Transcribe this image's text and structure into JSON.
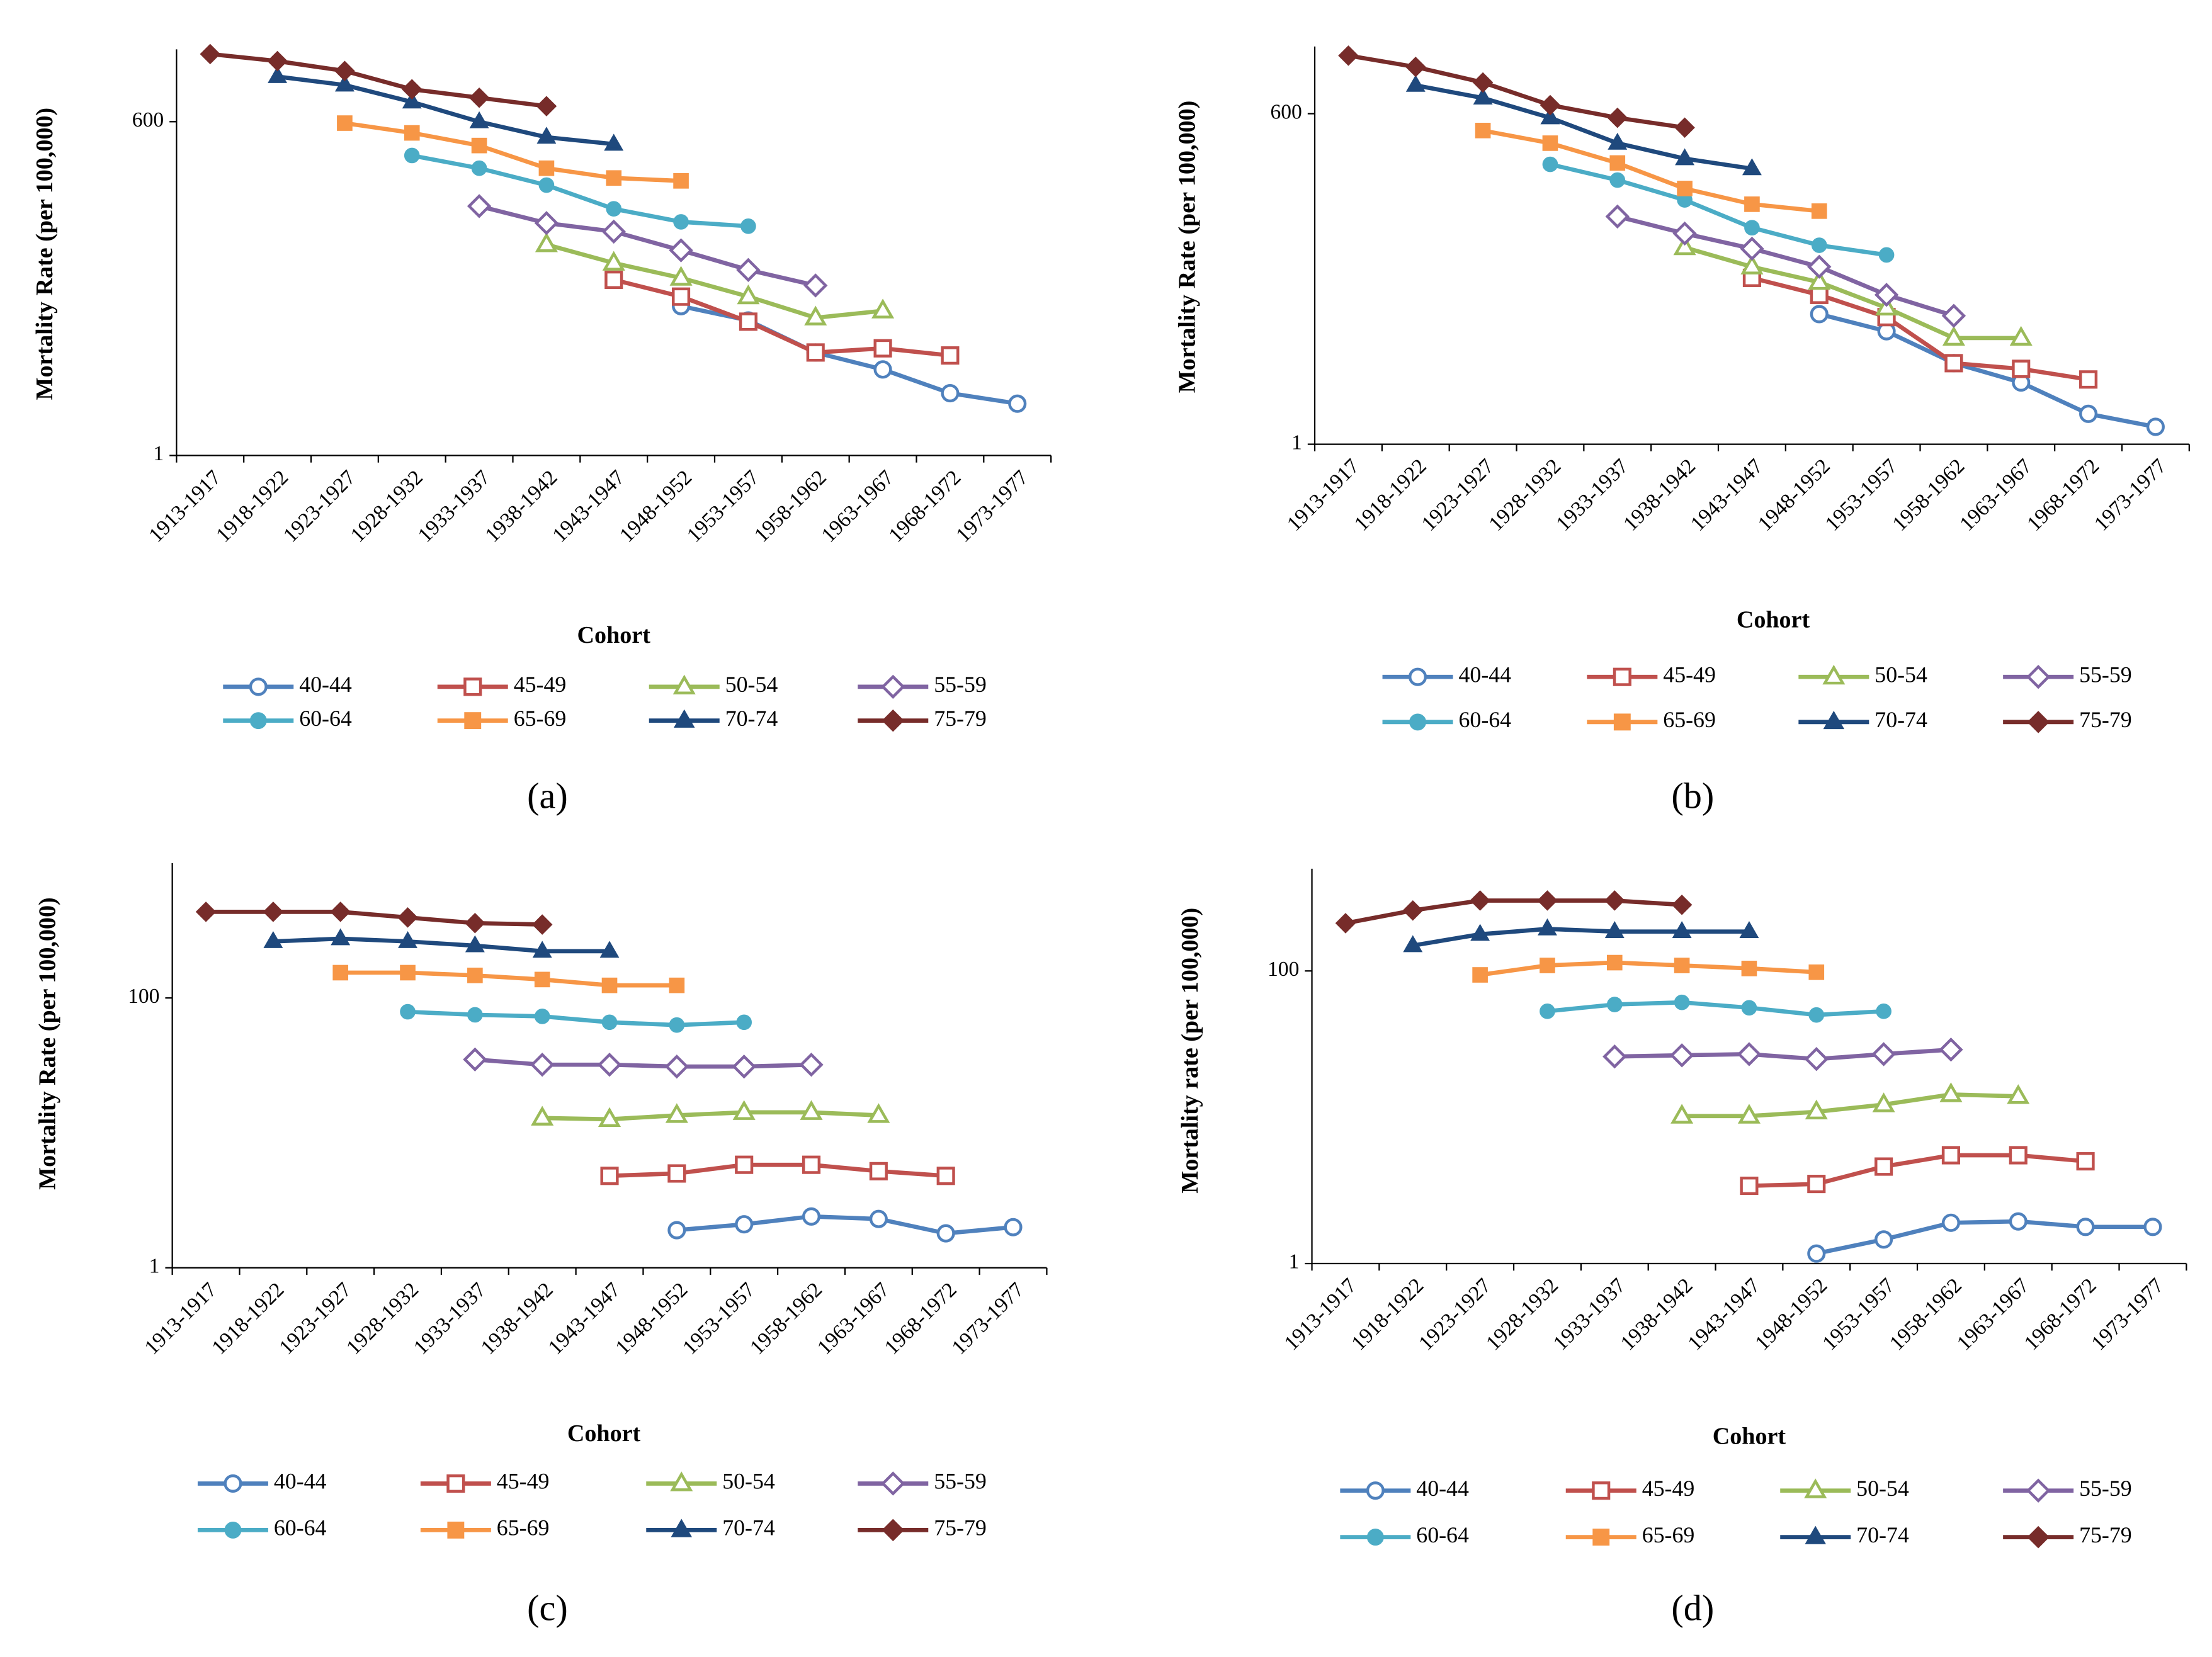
{
  "chart_data": [
    {
      "type": "line",
      "caption": "(a)",
      "x_label": "Cohort",
      "y_label": "Mortality  Rate  (per 100,000)",
      "log_scale": true,
      "categories": [
        "1913-1917",
        "1918-1922",
        "1923-1927",
        "1928-1932",
        "1933-1937",
        "1938-1942",
        "1943-1947",
        "1948-1952",
        "1953-1957",
        "1958-1962",
        "1963-1967",
        "1968-1972",
        "1973-1977"
      ],
      "ylim": [
        1,
        2400
      ],
      "yticks": [
        1,
        600
      ],
      "series": [
        {
          "name": "40-44",
          "color": "#4f81bd",
          "marker": "circle",
          "filled": false,
          "values": [
            null,
            null,
            null,
            null,
            null,
            null,
            null,
            17.5,
            13.3,
            7.2,
            5.2,
            3.3,
            2.7
          ]
        },
        {
          "name": "45-49",
          "color": "#c0504d",
          "marker": "square",
          "filled": false,
          "values": [
            null,
            null,
            null,
            null,
            null,
            null,
            29,
            21,
            13,
            7.2,
            7.8,
            6.8,
            null
          ]
        },
        {
          "name": "50-54",
          "color": "#9bbb59",
          "marker": "triangle",
          "filled": false,
          "values": [
            null,
            null,
            null,
            null,
            null,
            57,
            40,
            30,
            21,
            14,
            16,
            null,
            null
          ]
        },
        {
          "name": "55-59",
          "color": "#8064a2",
          "marker": "diamond",
          "filled": false,
          "values": [
            null,
            null,
            null,
            null,
            119,
            86,
            73,
            51,
            35,
            26,
            null,
            null,
            null
          ]
        },
        {
          "name": "60-64",
          "color": "#4bacc6",
          "marker": "circle",
          "filled": true,
          "values": [
            null,
            null,
            null,
            314,
            246,
            178,
            113,
            88,
            81,
            null,
            null,
            null,
            null
          ]
        },
        {
          "name": "65-69",
          "color": "#f79646",
          "marker": "square",
          "filled": true,
          "values": [
            null,
            null,
            584,
            484,
            380,
            246,
            204,
            193,
            null,
            null,
            null,
            null,
            null
          ]
        },
        {
          "name": "70-74",
          "color": "#1f497d",
          "marker": "triangle",
          "filled": true,
          "values": [
            null,
            1425,
            1211,
            876,
            600,
            446,
            390,
            null,
            null,
            null,
            null,
            null,
            null
          ]
        },
        {
          "name": "75-79",
          "color": "#772c2a",
          "marker": "diamond",
          "filled": true,
          "values": [
            2193,
            1917,
            1586,
            1117,
            950,
            808,
            null,
            null,
            null,
            null,
            null,
            null,
            null
          ]
        }
      ]
    },
    {
      "type": "line",
      "caption": "(b)",
      "x_label": "Cohort",
      "y_label": "Mortality  Rate  (per 100,000)",
      "log_scale": true,
      "categories": [
        "1913-1917",
        "1918-1922",
        "1923-1927",
        "1928-1932",
        "1933-1937",
        "1938-1942",
        "1943-1947",
        "1948-1952",
        "1953-1957",
        "1958-1962",
        "1963-1967",
        "1968-1972",
        "1973-1977"
      ],
      "ylim": [
        1,
        2200
      ],
      "yticks": [
        1,
        600
      ],
      "series": [
        {
          "name": "40-44",
          "color": "#4f81bd",
          "marker": "circle",
          "filled": false,
          "values": [
            null,
            null,
            null,
            null,
            null,
            null,
            null,
            12.4,
            8.9,
            4.8,
            3.3,
            1.8,
            1.4
          ]
        },
        {
          "name": "45-49",
          "color": "#c0504d",
          "marker": "square",
          "filled": false,
          "values": [
            null,
            null,
            null,
            null,
            null,
            null,
            25,
            18,
            11.7,
            4.8,
            4.3,
            3.5,
            null
          ]
        },
        {
          "name": "50-54",
          "color": "#9bbb59",
          "marker": "triangle",
          "filled": false,
          "values": [
            null,
            null,
            null,
            null,
            null,
            45,
            31,
            23,
            14,
            7.8,
            7.8,
            null,
            null
          ]
        },
        {
          "name": "55-59",
          "color": "#8064a2",
          "marker": "diamond",
          "filled": false,
          "values": [
            null,
            null,
            null,
            null,
            82,
            59,
            44,
            31,
            18,
            12,
            null,
            null,
            null
          ]
        },
        {
          "name": "60-64",
          "color": "#4bacc6",
          "marker": "circle",
          "filled": true,
          "values": [
            null,
            null,
            null,
            225,
            166,
            113,
            66,
            47,
            39,
            null,
            null,
            null,
            null
          ]
        },
        {
          "name": "65-69",
          "color": "#f79646",
          "marker": "square",
          "filled": true,
          "values": [
            null,
            null,
            433,
            339,
            231,
            141,
            104,
            91,
            null,
            null,
            null,
            null,
            null
          ]
        },
        {
          "name": "70-74",
          "color": "#1f497d",
          "marker": "triangle",
          "filled": true,
          "values": [
            null,
            1040,
            812,
            554,
            339,
            251,
            207,
            null,
            null,
            null,
            null,
            null,
            null
          ]
        },
        {
          "name": "75-79",
          "color": "#772c2a",
          "marker": "diamond",
          "filled": true,
          "values": [
            1845,
            1483,
            1097,
            708,
            554,
            458,
            null,
            null,
            null,
            null,
            null,
            null,
            null
          ]
        }
      ]
    },
    {
      "type": "line",
      "caption": "(c)",
      "x_label": "Cohort",
      "y_label": "Mortality  Rate  (per 100,000)",
      "log_scale": true,
      "categories": [
        "1913-1917",
        "1918-1922",
        "1923-1927",
        "1928-1932",
        "1933-1937",
        "1938-1942",
        "1943-1947",
        "1948-1952",
        "1953-1957",
        "1958-1962",
        "1963-1967",
        "1968-1972",
        "1973-1977"
      ],
      "ylim": [
        1,
        1000
      ],
      "yticks": [
        1,
        100
      ],
      "series": [
        {
          "name": "40-44",
          "color": "#4f81bd",
          "marker": "circle",
          "filled": false,
          "values": [
            null,
            null,
            null,
            null,
            null,
            null,
            null,
            1.9,
            2.1,
            2.4,
            2.3,
            1.8,
            2.0
          ]
        },
        {
          "name": "45-49",
          "color": "#c0504d",
          "marker": "square",
          "filled": false,
          "values": [
            null,
            null,
            null,
            null,
            null,
            null,
            4.8,
            5.0,
            5.8,
            5.8,
            5.2,
            4.8,
            null
          ]
        },
        {
          "name": "50-54",
          "color": "#9bbb59",
          "marker": "triangle",
          "filled": false,
          "values": [
            null,
            null,
            null,
            null,
            null,
            12.9,
            12.6,
            13.5,
            14.2,
            14.2,
            13.5,
            null,
            null
          ]
        },
        {
          "name": "55-59",
          "color": "#8064a2",
          "marker": "diamond",
          "filled": false,
          "values": [
            null,
            null,
            null,
            null,
            35,
            32,
            32,
            31,
            31,
            32,
            null,
            null,
            null
          ]
        },
        {
          "name": "60-64",
          "color": "#4bacc6",
          "marker": "circle",
          "filled": true,
          "values": [
            null,
            null,
            null,
            79,
            75,
            73,
            66,
            63,
            66,
            null,
            null,
            null,
            null
          ]
        },
        {
          "name": "65-69",
          "color": "#f79646",
          "marker": "square",
          "filled": true,
          "values": [
            null,
            null,
            154,
            154,
            147,
            137,
            124,
            124,
            null,
            null,
            null,
            null,
            null
          ]
        },
        {
          "name": "70-74",
          "color": "#1f497d",
          "marker": "triangle",
          "filled": true,
          "values": [
            null,
            262,
            275,
            262,
            244,
            222,
            222,
            null,
            null,
            null,
            null,
            null,
            null
          ]
        },
        {
          "name": "75-79",
          "color": "#772c2a",
          "marker": "diamond",
          "filled": true,
          "values": [
            435,
            435,
            435,
            395,
            359,
            350,
            null,
            null,
            null,
            null,
            null,
            null,
            null
          ]
        }
      ]
    },
    {
      "type": "line",
      "caption": "(d)",
      "x_label": "Cohort",
      "y_label": "Mortality  rate  (per 100,000)",
      "log_scale": true,
      "categories": [
        "1913-1917",
        "1918-1922",
        "1923-1927",
        "1928-1932",
        "1933-1937",
        "1938-1942",
        "1943-1947",
        "1948-1952",
        "1953-1957",
        "1958-1962",
        "1963-1967",
        "1968-1972",
        "1973-1977"
      ],
      "ylim": [
        1,
        500
      ],
      "yticks": [
        1,
        100
      ],
      "series": [
        {
          "name": "40-44",
          "color": "#4f81bd",
          "marker": "circle",
          "filled": false,
          "values": [
            null,
            null,
            null,
            null,
            null,
            null,
            null,
            1.17,
            1.46,
            1.9,
            1.94,
            1.78,
            1.78
          ]
        },
        {
          "name": "45-49",
          "color": "#c0504d",
          "marker": "square",
          "filled": false,
          "values": [
            null,
            null,
            null,
            null,
            null,
            null,
            3.4,
            3.5,
            4.6,
            5.5,
            5.5,
            5.0,
            null
          ]
        },
        {
          "name": "50-54",
          "color": "#9bbb59",
          "marker": "triangle",
          "filled": false,
          "values": [
            null,
            null,
            null,
            null,
            null,
            10.2,
            10.2,
            10.9,
            12.2,
            14.3,
            13.9,
            null,
            null
          ]
        },
        {
          "name": "55-59",
          "color": "#8064a2",
          "marker": "diamond",
          "filled": false,
          "values": [
            null,
            null,
            null,
            null,
            26,
            26.5,
            27,
            25,
            27,
            29,
            null,
            null,
            null
          ]
        },
        {
          "name": "60-64",
          "color": "#4bacc6",
          "marker": "circle",
          "filled": true,
          "values": [
            null,
            null,
            null,
            53,
            59,
            61,
            56,
            50,
            53,
            null,
            null,
            null,
            null
          ]
        },
        {
          "name": "65-69",
          "color": "#f79646",
          "marker": "square",
          "filled": true,
          "values": [
            null,
            null,
            94,
            109,
            114,
            109,
            104,
            98,
            null,
            null,
            null,
            null,
            null
          ]
        },
        {
          "name": "70-74",
          "color": "#1f497d",
          "marker": "triangle",
          "filled": true,
          "values": [
            null,
            149,
            178,
            194,
            186,
            186,
            186,
            null,
            null,
            null,
            null,
            null,
            null
          ]
        },
        {
          "name": "75-79",
          "color": "#772c2a",
          "marker": "diamond",
          "filled": true,
          "values": [
            212,
            259,
            303,
            303,
            303,
            283,
            null,
            null,
            null,
            null,
            null,
            null,
            null
          ]
        }
      ]
    }
  ]
}
